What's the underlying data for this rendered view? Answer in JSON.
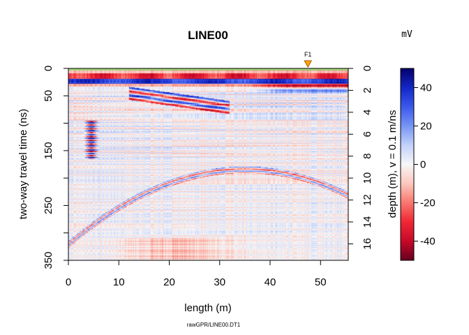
{
  "chart_data": {
    "type": "heatmap",
    "title": "LINE00",
    "xlabel": "length (m)",
    "ylabel": "two-way travel time (ns)",
    "y2label": "depth (m),  v = 0.1 m/ns",
    "colorbar_unit": "mV",
    "source_file": "rawGPR/LINE00.DT1",
    "xlim": [
      0,
      55.5
    ],
    "ylim": [
      350,
      0
    ],
    "y2lim": [
      0,
      17.5
    ],
    "clim": [
      -50,
      50
    ],
    "x_ticks": [
      "0",
      "10",
      "20",
      "30",
      "40",
      "50"
    ],
    "y_ticks": [
      "0",
      "50",
      "100",
      "150",
      "200",
      "250",
      "300",
      "350"
    ],
    "y2_ticks": [
      "0",
      "2",
      "4",
      "6",
      "8",
      "10",
      "12",
      "14",
      "16"
    ],
    "colorbar_ticks": [
      "40",
      "20",
      "0",
      "-20",
      "-40"
    ],
    "markers": [
      {
        "label": "F1",
        "x": 47.5,
        "color": "#ffa500"
      }
    ],
    "palette": {
      "low": "#67001f",
      "mid": "#f7f7f7",
      "high": "#05006a"
    },
    "features": [
      {
        "desc": "direct wave band",
        "t_start": 18,
        "t_end": 28,
        "polarity": "positive",
        "amplitude": 35
      },
      {
        "desc": "ground wave band",
        "t_start": 10,
        "t_end": 18,
        "polarity": "negative",
        "amplitude": 30
      },
      {
        "desc": "strong point reflector stack",
        "x_center": 4.5,
        "t_start": 95,
        "t_end": 160,
        "polarity": "alternating",
        "amplitude": 50
      },
      {
        "desc": "dipping reflector",
        "x_start": 12,
        "x_end": 30,
        "t_start": 45,
        "t_end": 70,
        "polarity": "alternating",
        "amplitude": 30
      },
      {
        "desc": "near-surface reflector",
        "x_start": 35,
        "x_end": 55,
        "t_start": 30,
        "t_end": 45,
        "polarity": "positive",
        "amplitude": 25
      }
    ]
  }
}
